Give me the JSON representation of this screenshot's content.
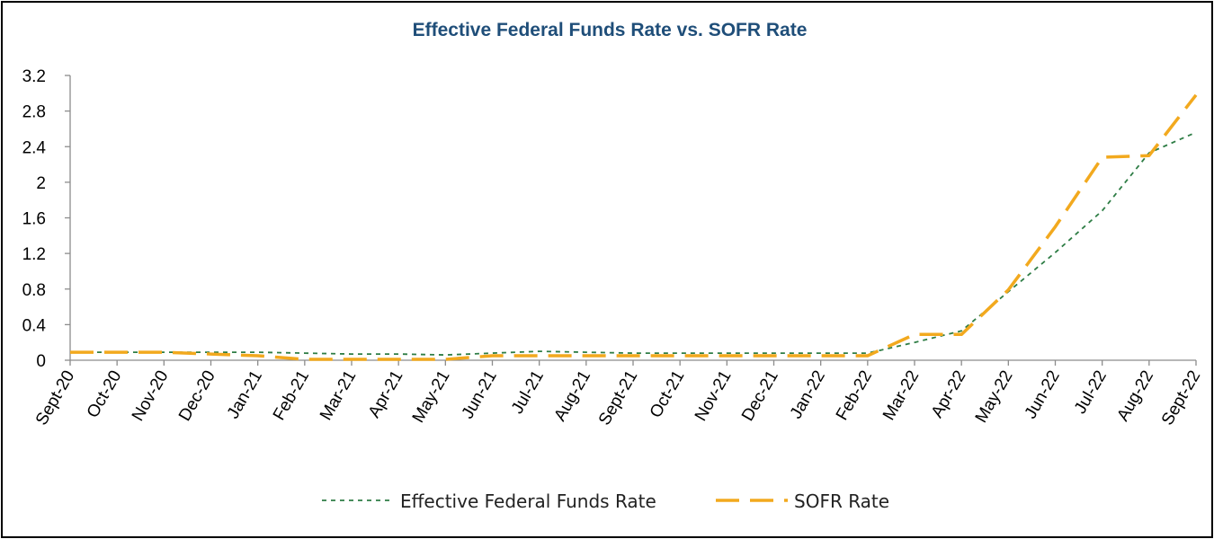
{
  "chart_data": {
    "type": "line",
    "title": "Effective Federal Funds Rate vs. SOFR Rate",
    "xlabel": "",
    "ylabel": "",
    "ylim": [
      0,
      3.2
    ],
    "yticks": [
      "0",
      "0.4",
      "0.8",
      "1.2",
      "1.6",
      "2",
      "2.4",
      "2.8",
      "3.2"
    ],
    "categories": [
      "Sept-20",
      "Oct-20",
      "Nov-20",
      "Dec-20",
      "Jan-21",
      "Feb-21",
      "Mar-21",
      "Apr-21",
      "May-21",
      "Jun-21",
      "Jul-21",
      "Aug-21",
      "Sept-21",
      "Oct-21",
      "Nov-21",
      "Dec-21",
      "Jan-22",
      "Feb-22",
      "Mar-22",
      "Apr-22",
      "May-22",
      "Jun-22",
      "Jul-22",
      "Aug-22",
      "Sept-22"
    ],
    "series": [
      {
        "name": "Effective Federal Funds Rate",
        "color": "#2E7D45",
        "style": "dotted",
        "values": [
          0.09,
          0.09,
          0.09,
          0.09,
          0.09,
          0.08,
          0.07,
          0.07,
          0.06,
          0.08,
          0.1,
          0.09,
          0.08,
          0.08,
          0.08,
          0.08,
          0.08,
          0.08,
          0.2,
          0.33,
          0.77,
          1.21,
          1.68,
          2.33,
          2.56
        ]
      },
      {
        "name": "SOFR Rate",
        "color": "#F2A91E",
        "style": "dashed",
        "values": [
          0.09,
          0.09,
          0.09,
          0.07,
          0.05,
          0.01,
          0.01,
          0.01,
          0.01,
          0.05,
          0.05,
          0.05,
          0.05,
          0.05,
          0.05,
          0.05,
          0.05,
          0.05,
          0.29,
          0.29,
          0.79,
          1.5,
          2.28,
          2.3,
          2.98
        ]
      }
    ],
    "legend": "bottom-center",
    "colors": {
      "title": "#1F4E79",
      "axis": "#8C8C8C",
      "border": "#000000"
    }
  }
}
